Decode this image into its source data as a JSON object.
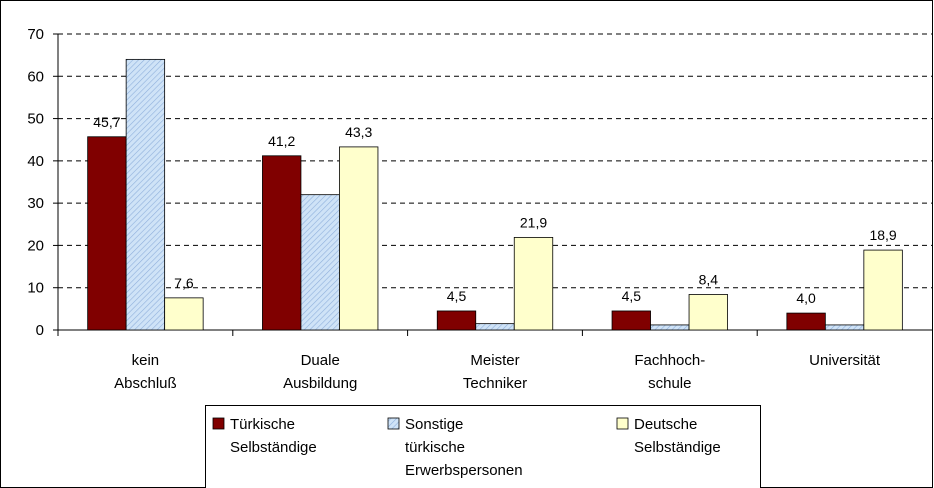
{
  "chart_data": {
    "type": "bar",
    "categories": [
      "kein\nAbschluß",
      "Duale\nAusbildung",
      "Meister\nTechniker",
      "Fachhoch-\nschule",
      "Universität"
    ],
    "series": [
      {
        "name": "Türkische\nSelbständige",
        "color": "#800000",
        "values": [
          45.7,
          41.2,
          4.5,
          4.5,
          4.0
        ],
        "value_labels": [
          "45,7",
          "41,2",
          "4,5",
          "4,5",
          "4,0"
        ]
      },
      {
        "name": "Sonstige\ntürkische\nErwerbspersonen",
        "color": "#cfe3f7",
        "hatch": true,
        "values": [
          64,
          32,
          1.5,
          1.2,
          1.2
        ]
      },
      {
        "name": "Deutsche\nSelbständige",
        "color": "#ffffcc",
        "values": [
          7.6,
          43.3,
          21.9,
          8.4,
          18.9
        ],
        "value_labels": [
          "7,6",
          "43,3",
          "21,9",
          "8,4",
          "18,9"
        ]
      }
    ],
    "ylim": [
      0,
      70
    ],
    "yticks": [
      0,
      10,
      20,
      30,
      40,
      50,
      60,
      70
    ],
    "grid": true,
    "legend": "bottom"
  }
}
